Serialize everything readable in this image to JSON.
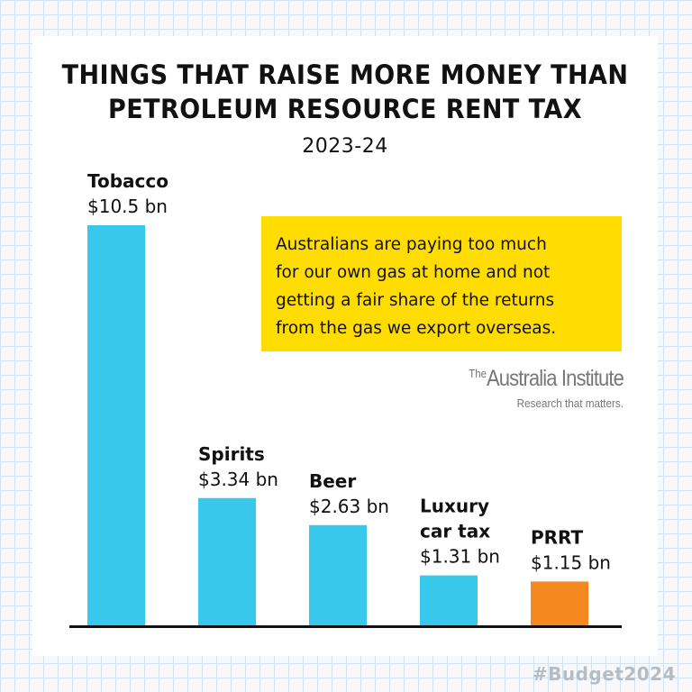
{
  "chart_data": {
    "type": "bar",
    "title_lines": [
      "THINGS THAT RAISE MORE MONEY THAN",
      "PETROLEUM RESOURCE RENT TAX"
    ],
    "subtitle": "2023-24",
    "unit": "$ bn",
    "categories": [
      {
        "label_lines": [
          "Tobacco"
        ],
        "value": 10.5,
        "value_label": "$10.5 bn",
        "color": "#38c8ec"
      },
      {
        "label_lines": [
          "Spirits"
        ],
        "value": 3.34,
        "value_label": "$3.34 bn",
        "color": "#38c8ec"
      },
      {
        "label_lines": [
          "Beer"
        ],
        "value": 2.63,
        "value_label": "$2.63 bn",
        "color": "#38c8ec"
      },
      {
        "label_lines": [
          "Luxury",
          "car tax"
        ],
        "value": 1.31,
        "value_label": "$1.31 bn",
        "color": "#38c8ec"
      },
      {
        "label_lines": [
          "PRRT"
        ],
        "value": 1.15,
        "value_label": "$1.15 bn",
        "color": "#f5891f"
      }
    ],
    "ylim": [
      0,
      10.5
    ],
    "grid": false,
    "legend": "none"
  },
  "callout": {
    "lines": [
      "Australians are paying too much",
      "for our own gas at home and not",
      "getting a fair share of the returns",
      "from the gas we export overseas."
    ],
    "color": "#ffdd00"
  },
  "logo": {
    "the": "The",
    "name": "Australia Institute",
    "tagline": "Research that matters."
  },
  "hashtag": "#Budget2024",
  "colors": {
    "bar_default": "#38c8ec",
    "bar_highlight": "#f5891f",
    "axis": "#111111"
  }
}
